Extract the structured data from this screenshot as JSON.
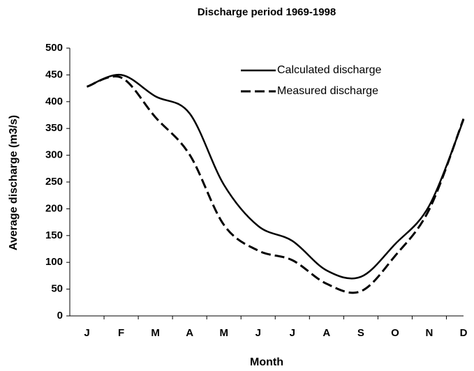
{
  "chart_data": {
    "type": "line",
    "title": "Discharge period 1969-1998",
    "x_label": "Month",
    "y_label": "Average discharge (m3/s)",
    "categories": [
      "J",
      "F",
      "M",
      "A",
      "M",
      "J",
      "J",
      "A",
      "S",
      "O",
      "N",
      "D"
    ],
    "series": [
      {
        "name": "Calculated discharge",
        "color": "#000000",
        "line_style": "solid",
        "values": [
          428,
          450,
          410,
          378,
          245,
          168,
          140,
          85,
          73,
          134,
          206,
          366
        ]
      },
      {
        "name": "Measured discharge",
        "color": "#000000",
        "line_style": "dashed",
        "values": [
          428,
          445,
          371,
          301,
          170,
          122,
          104,
          60,
          46,
          112,
          199,
          368
        ]
      }
    ],
    "ylim": [
      0,
      500
    ],
    "yticks": [
      0,
      50,
      100,
      150,
      200,
      250,
      300,
      350,
      400,
      450,
      500
    ],
    "grid": false,
    "legend": "upper right"
  }
}
